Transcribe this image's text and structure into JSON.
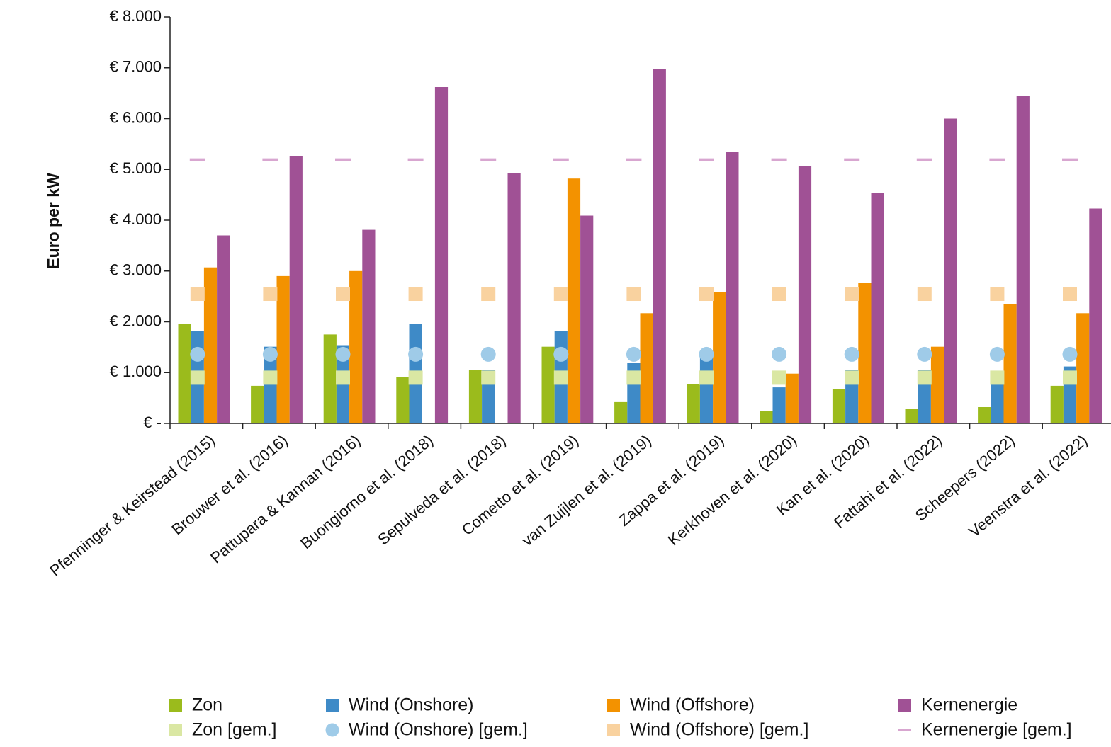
{
  "chart_data": {
    "type": "bar",
    "title": "",
    "ylabel": "Euro per kW",
    "xlabel": "",
    "ylim": [
      0,
      8000
    ],
    "y_tick_values": [
      0,
      1000,
      2000,
      3000,
      4000,
      5000,
      6000,
      7000,
      8000
    ],
    "y_tick_labels": [
      "€ -",
      "€ 1.000",
      "€ 2.000",
      "€ 3.000",
      "€ 4.000",
      "€ 5.000",
      "€ 6.000",
      "€ 7.000",
      "€ 8.000"
    ],
    "grid": false,
    "legend_position": "bottom",
    "categories": [
      "Pfenninger & Keirstead (2015)",
      "Brouwer et al. (2016)",
      "Pattupara & Kannan (2016)",
      "Buongiorno et al. (2018)",
      "Sepulveda et al. (2018)",
      "Cometto et al. (2019)",
      "van Zuijlen et al. (2019)",
      "Zappa et al. (2019)",
      "Kerkhoven et al. (2020)",
      "Kan et al. (2020)",
      "Fattahi et al. (2022)",
      "Scheepers (2022)",
      "Veenstra et al. (2022)"
    ],
    "series": [
      {
        "name": "Zon",
        "kind": "bar",
        "color": "#9bbb1c",
        "values": [
          1960,
          740,
          1750,
          910,
          1050,
          1510,
          420,
          780,
          250,
          670,
          290,
          320,
          740
        ]
      },
      {
        "name": "Wind (Onshore)",
        "kind": "bar",
        "color": "#3e8ac7",
        "values": [
          1820,
          1510,
          1540,
          1960,
          1050,
          1820,
          1190,
          1300,
          710,
          1050,
          1050,
          1020,
          1120
        ]
      },
      {
        "name": "Wind (Offshore)",
        "kind": "bar",
        "color": "#f39200",
        "values": [
          3070,
          2900,
          3000,
          null,
          null,
          4820,
          2170,
          2580,
          980,
          2760,
          1510,
          2350,
          2170
        ]
      },
      {
        "name": "Kernenergie",
        "kind": "bar",
        "color": "#a05195",
        "values": [
          3700,
          5260,
          3810,
          6620,
          4920,
          4090,
          6970,
          5340,
          5060,
          4540,
          6000,
          6450,
          4230
        ]
      },
      {
        "name": "Zon [gem.]",
        "kind": "square",
        "color": "#dae7a3",
        "value": 900
      },
      {
        "name": "Wind (Onshore) [gem.]",
        "kind": "circle",
        "color": "#9fcbe8",
        "value": 1360
      },
      {
        "name": "Wind (Offshore) [gem.]",
        "kind": "square",
        "color": "#f9d29f",
        "value": 2550
      },
      {
        "name": "Kernenergie [gem.]",
        "kind": "dash",
        "color": "#d8a6d0",
        "value": 5190
      }
    ]
  }
}
